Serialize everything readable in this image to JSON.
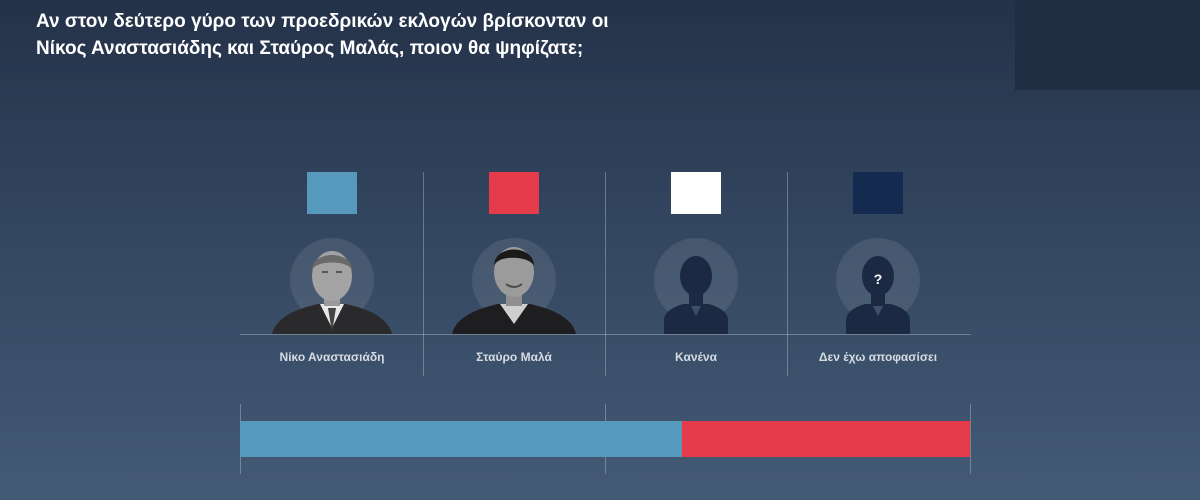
{
  "title_lines": [
    "Αν στον δεύτερο γύρο των προεδρικών εκλογών βρίσκονταν οι",
    "Νίκος Αναστασιάδης και Σταύρος Μαλάς, ποιον θα ψηφίζατε;"
  ],
  "question_mark": "?",
  "colors": {
    "anastasiades": "#5799bd",
    "malas": "#e53a4a",
    "none": "#ffffff",
    "undecided": "#142a4e"
  },
  "chart_data": {
    "type": "bar",
    "orientation": "horizontal-stacked",
    "title": "Αν στον δεύτερο γύρο των προεδρικών εκλογών βρίσκονταν οι Νίκος Αναστασιάδης και Σταύρος Μαλάς, ποιον θα ψηφίζατε;",
    "categories": [
      "Νίκο Αναστασιάδη",
      "Σταύρο Μαλά",
      "Κανένα",
      "Δεν έχω αποφασίσει"
    ],
    "values": [
      60.5,
      39.5,
      0,
      0
    ],
    "unit": "percent",
    "xlim": [
      0,
      100
    ],
    "grid": true,
    "legend": "top"
  }
}
